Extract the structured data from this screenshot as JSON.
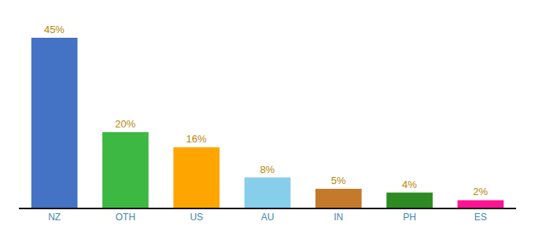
{
  "chart_data": {
    "type": "bar",
    "categories": [
      "NZ",
      "OTH",
      "US",
      "AU",
      "IN",
      "PH",
      "ES"
    ],
    "values": [
      45,
      20,
      16,
      8,
      5,
      4,
      2
    ],
    "value_labels": [
      "45%",
      "20%",
      "16%",
      "8%",
      "5%",
      "4%",
      "2%"
    ],
    "colors": [
      "#4472C4",
      "#3CB843",
      "#FFA500",
      "#87CEEB",
      "#C47A2B",
      "#2E8B22",
      "#FF1493"
    ],
    "ylim": [
      0,
      50
    ],
    "grid": false,
    "data_labels": true,
    "tick_labels": "x"
  }
}
